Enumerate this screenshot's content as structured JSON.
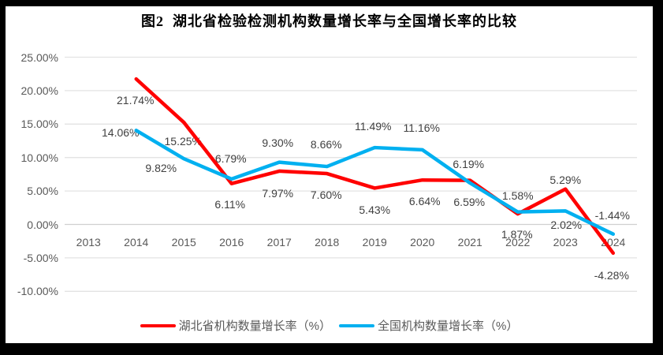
{
  "chart_data": {
    "type": "line",
    "title": "图2  湖北省检验检测机构数量增长率与全国增长率的比较",
    "categories": [
      "2013",
      "2014",
      "2015",
      "2016",
      "2017",
      "2018",
      "2019",
      "2020",
      "2021",
      "2022",
      "2023",
      "2024"
    ],
    "series": [
      {
        "name": "湖北省机构数量增长率（%）",
        "color": "#FF0000",
        "values": [
          null,
          21.74,
          15.25,
          6.11,
          7.97,
          7.6,
          5.43,
          6.64,
          6.59,
          1.58,
          5.29,
          -4.28
        ],
        "labels": [
          "",
          "21.74%",
          "15.25%",
          "6.11%",
          "7.97%",
          "7.60%",
          "5.43%",
          "6.64%",
          "6.59%",
          "1.58%",
          "5.29%",
          "-4.28%"
        ]
      },
      {
        "name": "全国机构数量增长率（%）",
        "color": "#00B0F0",
        "values": [
          null,
          14.06,
          9.82,
          6.79,
          9.3,
          8.66,
          11.49,
          11.16,
          6.19,
          1.87,
          2.02,
          -1.44
        ],
        "labels": [
          "",
          "14.06%",
          "9.82%",
          "6.79%",
          "9.30%",
          "8.66%",
          "11.49%",
          "11.16%",
          "6.19%",
          "1.87%",
          "2.02%",
          "-1.44%"
        ]
      }
    ],
    "y_axis": {
      "tick_labels": [
        "25.00%",
        "20.00%",
        "15.00%",
        "10.00%",
        "5.00%",
        "0.00%",
        "-5.00%",
        "-10.00%"
      ],
      "tick_values": [
        25,
        20,
        15,
        10,
        5,
        0,
        -5,
        -10
      ],
      "min": -10,
      "max": 25
    },
    "grid": true,
    "legend_position": "bottom",
    "colors": {
      "hubei_line": "#FF0000",
      "national_line": "#00B0F0",
      "gridline": "#E3E3E3",
      "zero_line": "#D0D0D0",
      "axis_text": "#595959",
      "data_label_text": "#404040",
      "frame": "#000000",
      "background": "#FFFFFF"
    }
  }
}
